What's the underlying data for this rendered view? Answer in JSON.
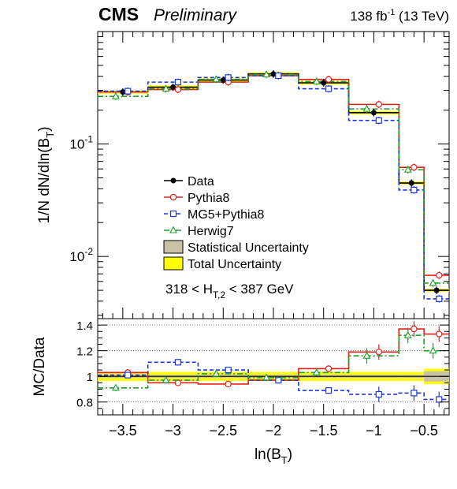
{
  "header": {
    "experiment": "CMS",
    "status": "Preliminary",
    "lumi_value": "138 fb",
    "lumi_exp": "-1",
    "lumi_energy": " (13 TeV)"
  },
  "chart_data": [
    {
      "panel": "main",
      "type": "line",
      "ylabel": "1/N dN/dln(B_T)",
      "yscale": "log",
      "ylim": [
        0.0028,
        1.0
      ],
      "yticks": [
        {
          "v": 0.1,
          "base": "10",
          "exp": "-1"
        },
        {
          "v": 0.01,
          "base": "10",
          "exp": "-2"
        }
      ],
      "annotation": "318 < H_T,2 < 387 GeV",
      "bin_edges": [
        -3.75,
        -3.25,
        -2.75,
        -2.25,
        -1.75,
        -1.25,
        -0.75,
        -0.5,
        -0.25
      ],
      "series": [
        {
          "name": "Data",
          "color": "#000000",
          "marker": "dot",
          "values": [
            0.29,
            0.32,
            0.37,
            0.42,
            0.35,
            0.19,
            0.045,
            0.005
          ]
        },
        {
          "name": "Pythia8",
          "color": "#e8201a",
          "marker": "circle",
          "values": [
            0.29,
            0.305,
            0.355,
            0.405,
            0.375,
            0.225,
            0.062,
            0.0068
          ]
        },
        {
          "name": "MG5+Pythia8",
          "color": "#1f37d8",
          "marker": "square",
          "values": [
            0.295,
            0.355,
            0.39,
            0.405,
            0.31,
            0.162,
            0.039,
            0.0042
          ]
        },
        {
          "name": "Herwig7",
          "color": "#1f9e2a",
          "marker": "triangle",
          "values": [
            0.265,
            0.31,
            0.375,
            0.415,
            0.36,
            0.205,
            0.059,
            0.0058
          ]
        }
      ],
      "legend": [
        {
          "label": "Data",
          "kind": "dot"
        },
        {
          "label": "Pythia8",
          "kind": "circle"
        },
        {
          "label": "MG5+Pythia8",
          "kind": "square"
        },
        {
          "label": "Herwig7",
          "kind": "triangle"
        },
        {
          "label": "Statistical Uncertainty",
          "kind": "box-stat"
        },
        {
          "label": "Total Uncertainty",
          "kind": "box-total"
        }
      ],
      "colors": {
        "stat_band": "#c9c2a7",
        "total_band": "#ffff00"
      }
    },
    {
      "panel": "ratio",
      "type": "line",
      "ylabel": "MC/Data",
      "xlabel": "ln(B_T)",
      "xlim": [
        -3.75,
        -0.25
      ],
      "ylim": [
        0.7,
        1.45
      ],
      "yticks": [
        "0.8",
        "1",
        "1.2",
        "1.4"
      ],
      "xticks": [
        "-3.5",
        "-3",
        "-2.5",
        "-2",
        "-1.5",
        "-1",
        "-0.5"
      ],
      "series": [
        {
          "name": "Pythia8",
          "values": [
            1.03,
            0.95,
            0.94,
            0.97,
            1.06,
            1.19,
            1.37,
            1.33
          ]
        },
        {
          "name": "MG5+Pythia8",
          "values": [
            1.01,
            1.11,
            1.05,
            0.97,
            0.89,
            0.86,
            0.87,
            0.82
          ]
        },
        {
          "name": "Herwig7",
          "values": [
            0.91,
            0.97,
            1.02,
            0.99,
            1.03,
            1.16,
            1.32,
            1.2
          ]
        }
      ]
    }
  ]
}
